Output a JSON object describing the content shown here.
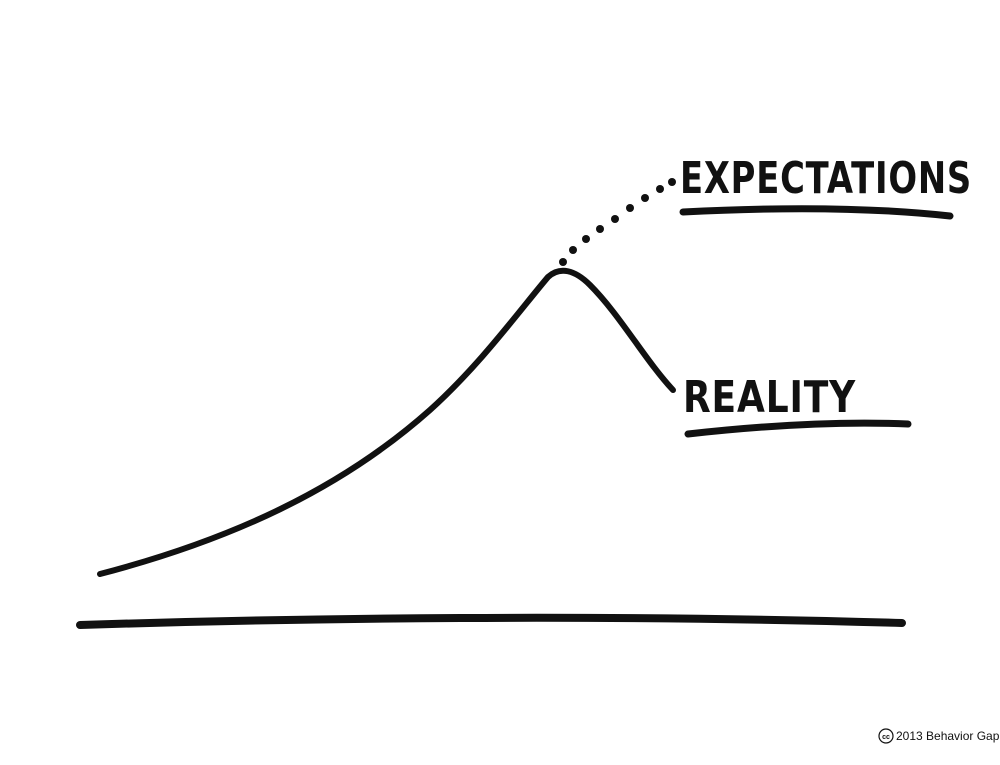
{
  "labels": {
    "expectations": "EXPECTATIONS",
    "reality": "REALITY"
  },
  "copyright": {
    "symbol": "cc",
    "text": "2013 Behavior Gap"
  },
  "colors": {
    "ink": "#111111",
    "background": "#ffffff"
  }
}
